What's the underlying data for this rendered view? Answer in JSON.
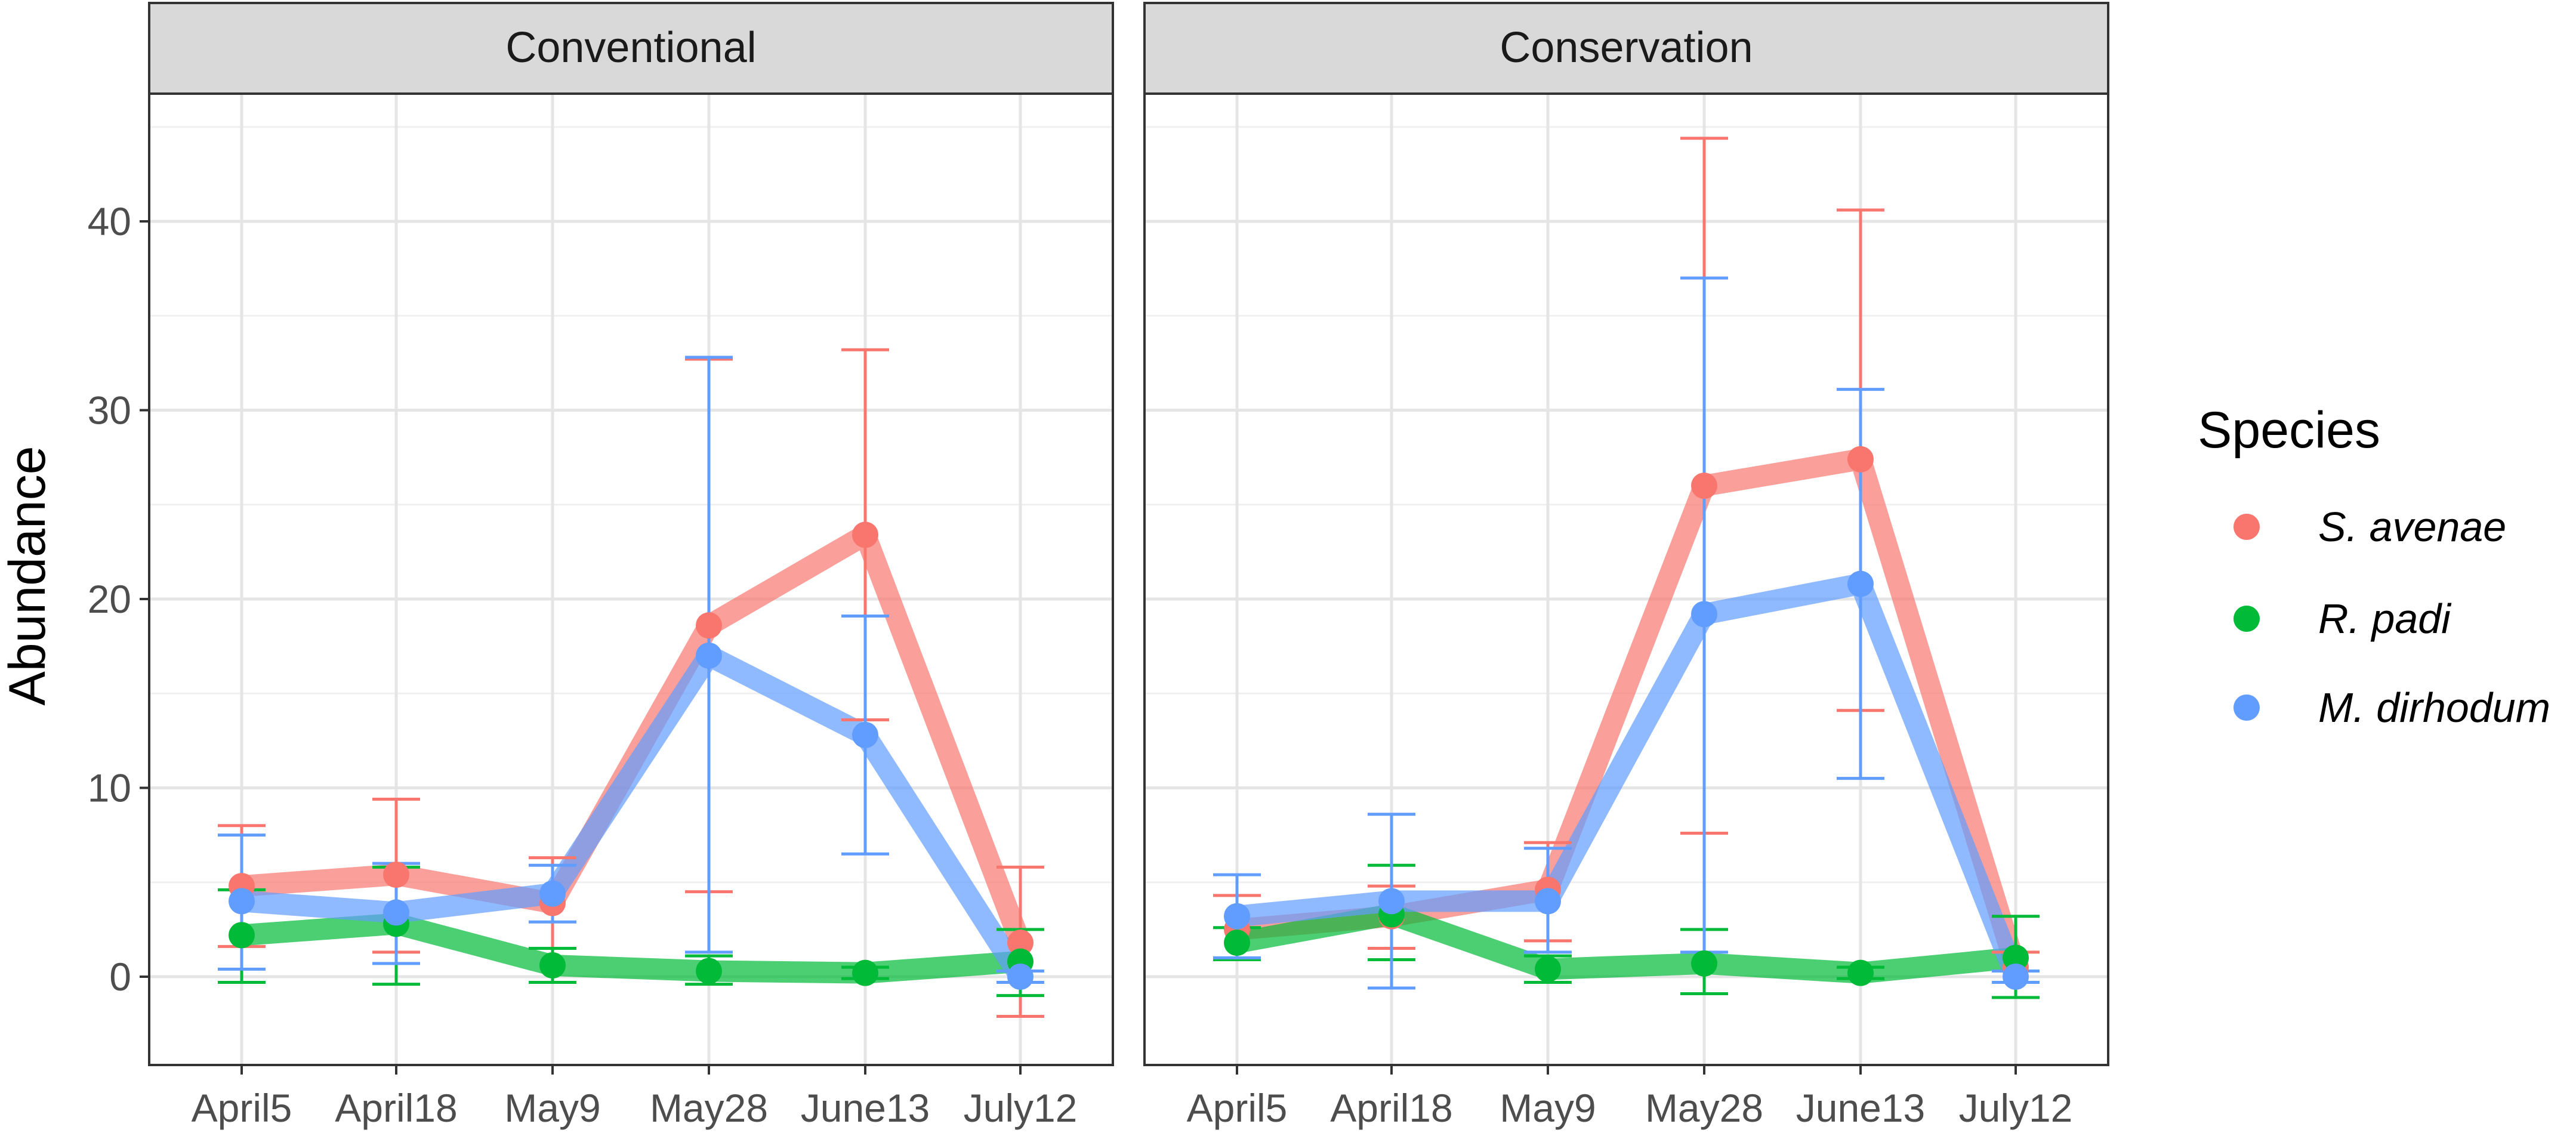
{
  "chart_data": {
    "type": "line",
    "ylabel": "Abundance",
    "xlabel": "",
    "categories": [
      "April5",
      "April18",
      "May9",
      "May28",
      "June13",
      "July12"
    ],
    "ylim": [
      -4.5,
      47
    ],
    "yticks": [
      0,
      10,
      20,
      30,
      40
    ],
    "grid": true,
    "legend": {
      "title": "Species",
      "placement": "right",
      "entries": [
        {
          "key": "s_avenae",
          "label": "S. avenae",
          "color": "#F8766D"
        },
        {
          "key": "r_padi",
          "label": "R. padi",
          "color": "#00BA38"
        },
        {
          "key": "m_dirhodum",
          "label": "M. dirhodum",
          "color": "#619CFF"
        }
      ]
    },
    "panels": [
      {
        "title": "Conventional",
        "series": [
          {
            "key": "s_avenae",
            "values": [
              4.8,
              5.4,
              3.9,
              18.6,
              23.4,
              1.8
            ],
            "lower": [
              1.6,
              1.3,
              1.5,
              4.5,
              13.6,
              -2.1
            ],
            "upper": [
              8.0,
              9.4,
              6.3,
              32.7,
              33.2,
              5.8
            ]
          },
          {
            "key": "r_padi",
            "values": [
              2.2,
              2.8,
              0.6,
              0.3,
              0.2,
              0.8
            ],
            "lower": [
              -0.3,
              -0.4,
              -0.3,
              -0.4,
              -0.1,
              -1.0
            ],
            "upper": [
              4.6,
              5.8,
              1.5,
              1.1,
              0.5,
              2.5
            ]
          },
          {
            "key": "m_dirhodum",
            "values": [
              4.0,
              3.4,
              4.4,
              17.0,
              12.8,
              0.0
            ],
            "lower": [
              0.4,
              0.7,
              2.9,
              1.3,
              6.5,
              -0.3
            ],
            "upper": [
              7.5,
              6.0,
              5.9,
              32.8,
              19.1,
              0.3
            ]
          }
        ]
      },
      {
        "title": "Conservation",
        "series": [
          {
            "key": "s_avenae",
            "values": [
              2.5,
              3.2,
              4.6,
              26.0,
              27.4,
              0.5
            ],
            "lower": [
              0.9,
              1.5,
              1.9,
              7.6,
              14.1,
              -0.3
            ],
            "upper": [
              4.3,
              4.8,
              7.1,
              44.4,
              40.6,
              1.3
            ]
          },
          {
            "key": "r_padi",
            "values": [
              1.8,
              3.3,
              0.4,
              0.7,
              0.2,
              1.0
            ],
            "lower": [
              0.9,
              0.9,
              -0.3,
              -0.9,
              -0.1,
              -1.1
            ],
            "upper": [
              2.6,
              5.9,
              1.1,
              2.5,
              0.5,
              3.2
            ]
          },
          {
            "key": "m_dirhodum",
            "values": [
              3.2,
              4.0,
              4.0,
              19.2,
              20.8,
              0.0
            ],
            "lower": [
              1.0,
              -0.6,
              1.3,
              1.3,
              10.5,
              -0.3
            ],
            "upper": [
              5.4,
              8.6,
              6.8,
              37.0,
              31.1,
              0.3
            ]
          }
        ]
      }
    ]
  }
}
